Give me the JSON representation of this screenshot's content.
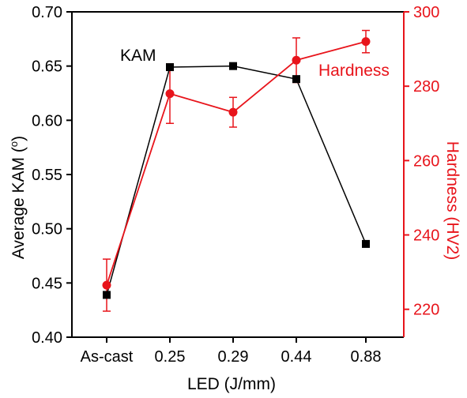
{
  "chart_data": {
    "type": "line",
    "categories": [
      "As-cast",
      "0.25",
      "0.29",
      "0.44",
      "0.88"
    ],
    "xlabel": "LED (J/mm)",
    "grid": false,
    "series": [
      {
        "name": "KAM",
        "axis": "left",
        "color": "#000000",
        "marker": "square",
        "values": [
          0.439,
          0.649,
          0.65,
          0.638,
          0.486
        ]
      },
      {
        "name": "Hardness",
        "axis": "right",
        "color": "#e8141b",
        "marker": "circle",
        "values": [
          226.5,
          278.0,
          273.0,
          287.0,
          292.0
        ],
        "error": [
          7.0,
          8.0,
          4.0,
          6.0,
          3.0
        ]
      }
    ],
    "y_left": {
      "label_prefix": "Average  KAM (",
      "label_sup": "o",
      "label_suffix": ")",
      "lim": [
        0.4,
        0.7
      ],
      "ticks": [
        "0.40",
        "0.45",
        "0.50",
        "0.55",
        "0.60",
        "0.65",
        "0.70"
      ]
    },
    "y_right": {
      "label": "Hardness (HV2)",
      "lim": [
        212.5,
        300
      ],
      "ticks": [
        "220",
        "240",
        "260",
        "280",
        "300"
      ]
    }
  }
}
